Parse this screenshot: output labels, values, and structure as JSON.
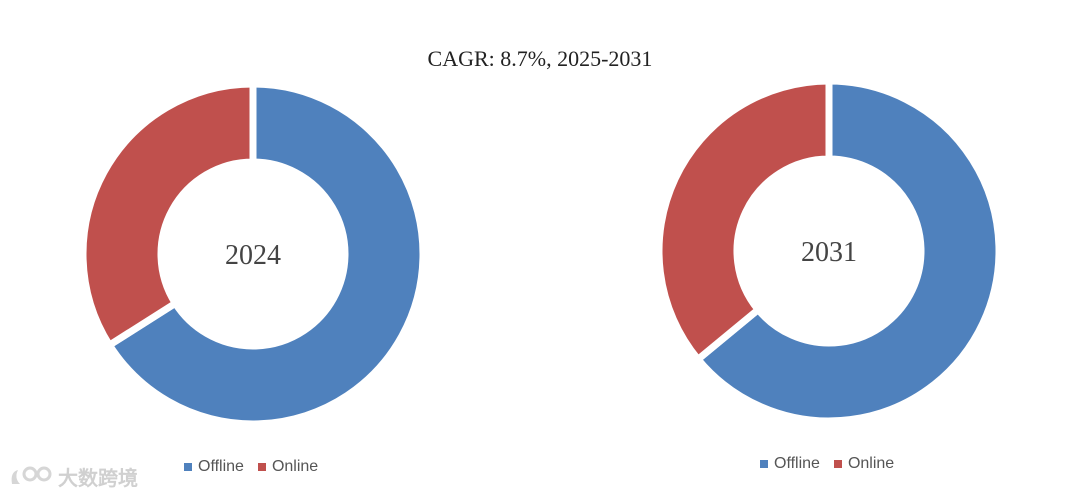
{
  "header": {
    "cagr_text": "CAGR:   8.7%, 2025-2031"
  },
  "colors": {
    "offline": "#4f81bd",
    "online": "#c0504d"
  },
  "legend": [
    {
      "label": "Offline",
      "color": "#4f81bd"
    },
    {
      "label": "Online",
      "color": "#c0504d"
    }
  ],
  "chart_data": [
    {
      "type": "pie",
      "center_label": "2024",
      "categories": [
        "Offline",
        "Online"
      ],
      "values": [
        66,
        34
      ]
    },
    {
      "type": "pie",
      "center_label": "2031",
      "categories": [
        "Offline",
        "Online"
      ],
      "values": [
        64,
        36
      ]
    }
  ],
  "watermark": {
    "text": "大数跨境"
  }
}
